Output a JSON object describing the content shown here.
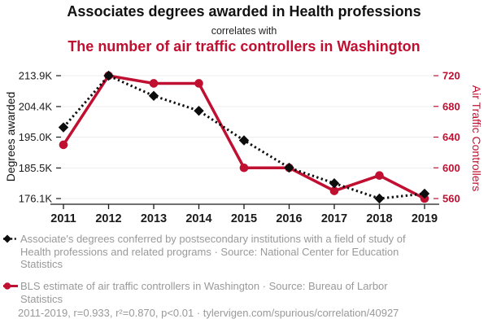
{
  "header": {
    "title": "Associates degrees awarded in Health professions",
    "connector": "correlates with",
    "subtitle": "The number of air traffic controllers in Washington"
  },
  "colors": {
    "degrees_series": "#0d0d0d",
    "controllers_series": "#c01031",
    "axis": "#1a1a1a",
    "gridline": "#eeeeee",
    "muted_text": "#999999"
  },
  "chart_data": {
    "type": "line",
    "x": [
      2011,
      2012,
      2013,
      2014,
      2015,
      2016,
      2017,
      2018,
      2019
    ],
    "series": [
      {
        "name": "degrees_awarded",
        "axis": "left",
        "marker": "diamond",
        "line_style": "dotted",
        "color": "#0d0d0d",
        "unit": "thousand degrees",
        "values": [
          198.0,
          213.9,
          207.7,
          203.1,
          194.0,
          185.6,
          180.8,
          176.1,
          177.6
        ]
      },
      {
        "name": "air_traffic_controllers",
        "axis": "right",
        "marker": "circle",
        "line_style": "solid",
        "color": "#c01031",
        "unit": "controllers",
        "values": [
          630,
          720,
          710,
          710,
          600,
          600,
          570,
          590,
          560
        ]
      }
    ],
    "left_axis": {
      "label": "Degrees awarded",
      "min": 176.1,
      "max": 213.9,
      "ticks": [
        176.1,
        185.5,
        195.0,
        204.4,
        213.9
      ],
      "tick_labels": [
        "176.1K",
        "185.5K",
        "195.0K",
        "204.4K",
        "213.9K"
      ]
    },
    "right_axis": {
      "label": "Air Traffic Controllers",
      "min": 560,
      "max": 720,
      "ticks": [
        560,
        600,
        640,
        680,
        720
      ],
      "tick_labels": [
        "560",
        "600",
        "640",
        "680",
        "720"
      ]
    },
    "grid": "horizontal",
    "legend_position": "below"
  },
  "legend": [
    {
      "series": "degrees_awarded",
      "text": "Associate's degrees conferred by postsecondary institutions with a field of study of Health professions and related programs · Source: National Center for Education Statistics"
    },
    {
      "series": "air_traffic_controllers",
      "text": "BLS estimate of air traffic controllers in Washington · Source: Bureau of Larbor Statistics"
    }
  ],
  "footer": {
    "text": "2011-2019, r=0.933, r²=0.870, p<0.01 · tylervigen.com/spurious/correlation/40927"
  }
}
